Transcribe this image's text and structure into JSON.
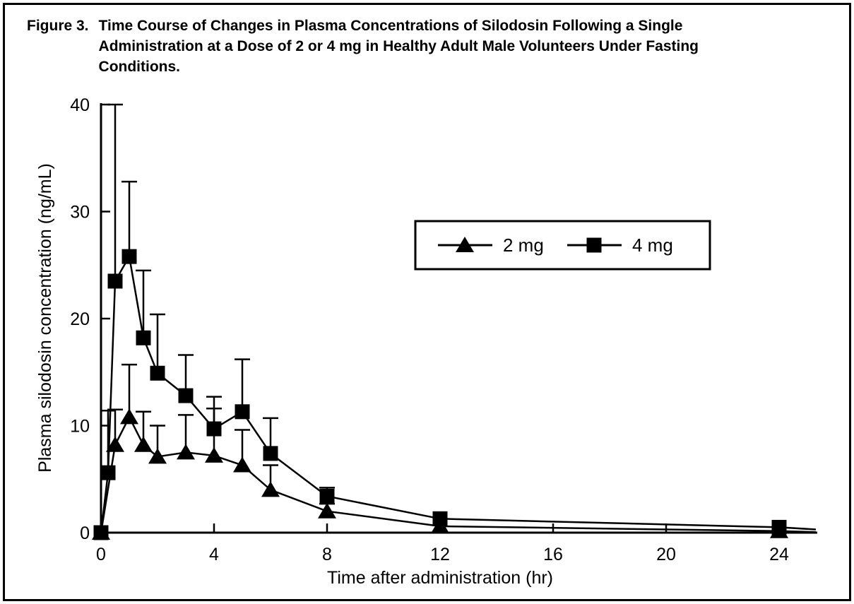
{
  "figure": {
    "label": "Figure 3.",
    "title_lines": [
      "Time Course of Changes in Plasma Concentrations of Silodosin Following a Single",
      "Administration at a Dose of 2 or 4 mg in Healthy Adult Male Volunteers Under Fasting",
      "Conditions."
    ]
  },
  "chart_data": {
    "type": "line",
    "title": "Time Course of Changes in Plasma Concentrations of Silodosin Following a Single Administration at a Dose of 2 or 4 mg in Healthy Adult Male Volunteers Under Fasting Conditions.",
    "xlabel": "Time after administration (hr)",
    "ylabel": "Plasma silodosin concentration (ng/mL)",
    "xlim": [
      0,
      25.3
    ],
    "ylim": [
      0,
      40
    ],
    "x_ticks": [
      0,
      4,
      8,
      12,
      16,
      20,
      24
    ],
    "y_ticks": [
      0,
      10,
      20,
      30,
      40
    ],
    "grid": false,
    "legend_position": "inside upper right",
    "error_bars": "upper only (mean + SD)",
    "series": [
      {
        "name": "2 mg",
        "marker": "triangle",
        "color": "#000000",
        "x": [
          0,
          0.5,
          1,
          1.5,
          2,
          3,
          4,
          5,
          6,
          8,
          12,
          24
        ],
        "y": [
          0,
          8.2,
          10.8,
          8.2,
          7.1,
          7.5,
          7.2,
          6.3,
          4.0,
          2.0,
          0.6,
          0.15
        ],
        "err_top": [
          null,
          11.5,
          15.7,
          11.3,
          10.0,
          11.0,
          11.6,
          9.6,
          6.3,
          2.7,
          null,
          null
        ],
        "tail": {
          "x": 25.3,
          "y": 0.05
        }
      },
      {
        "name": "4 mg",
        "marker": "square",
        "color": "#000000",
        "x": [
          0,
          0.25,
          0.5,
          1,
          1.5,
          2,
          3,
          4,
          5,
          6,
          8,
          12,
          24
        ],
        "y": [
          0,
          5.6,
          23.5,
          25.8,
          18.2,
          14.9,
          12.8,
          9.7,
          11.3,
          7.4,
          3.4,
          1.3,
          0.5
        ],
        "err_top": [
          null,
          11.4,
          40.0,
          32.8,
          24.5,
          20.4,
          16.6,
          12.7,
          16.2,
          10.7,
          4.2,
          null,
          null
        ],
        "tail": {
          "x": 25.3,
          "y": 0.3
        }
      }
    ],
    "legend": [
      {
        "label": "2 mg",
        "marker": "triangle"
      },
      {
        "label": "4 mg",
        "marker": "square"
      }
    ]
  },
  "colors": {
    "ink": "#000000",
    "background": "#ffffff"
  }
}
